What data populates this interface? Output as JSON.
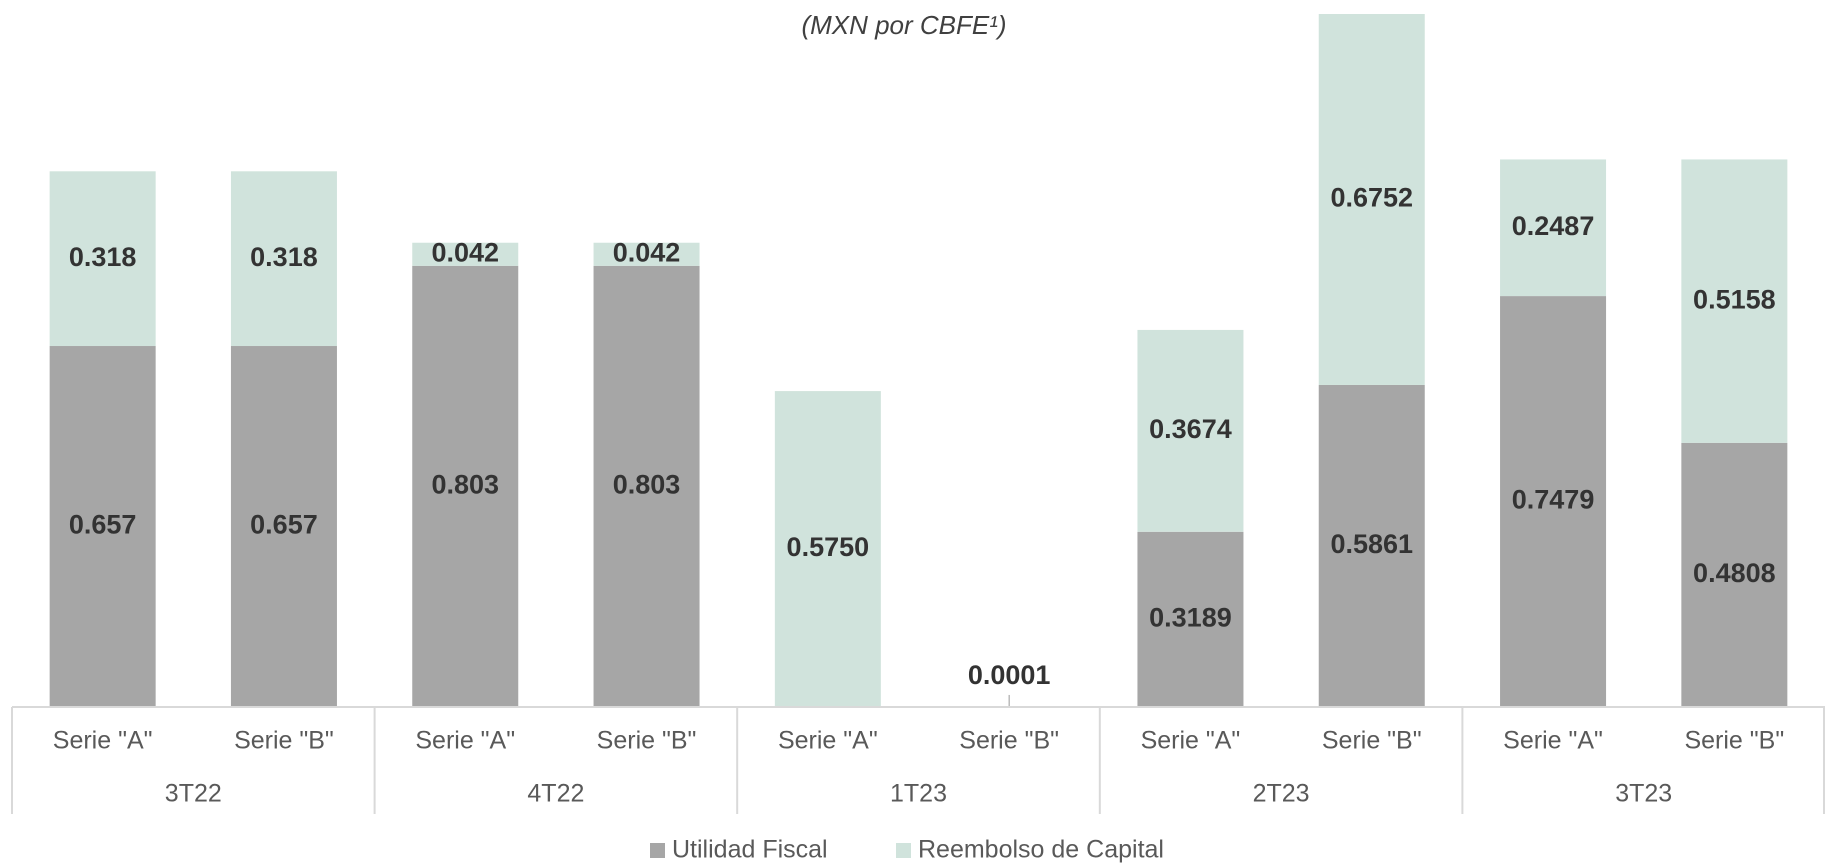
{
  "chart_data": {
    "type": "stacked-bar",
    "subtitle": "(MXN por CBFE¹)",
    "categories": [
      "Serie \"A\"",
      "Serie \"B\"",
      "Serie \"A\"",
      "Serie \"B\"",
      "Serie \"A\"",
      "Serie \"B\"",
      "Serie \"A\"",
      "Serie \"B\"",
      "Serie \"A\"",
      "Serie \"B\""
    ],
    "groups": [
      "3T22",
      "4T22",
      "1T23",
      "2T23",
      "3T23"
    ],
    "series": [
      {
        "name": "Utilidad Fiscal",
        "color": "#a6a6a6",
        "values": [
          0.657,
          0.657,
          0.803,
          0.803,
          0,
          0,
          0.3189,
          0.5861,
          0.7479,
          0.4808
        ]
      },
      {
        "name": "Reembolso de Capital",
        "color": "#d0e3dc",
        "values": [
          0.318,
          0.318,
          0.042,
          0.042,
          0.575,
          0.0001,
          0.3674,
          0.6752,
          0.2487,
          0.5158
        ],
        "value_labels": [
          "0.318",
          "0.318",
          "0.042",
          "0.042",
          "0.5750",
          "0.0001",
          "0.3674",
          "0.6752",
          "0.2487",
          "0.5158"
        ]
      }
    ]
  }
}
